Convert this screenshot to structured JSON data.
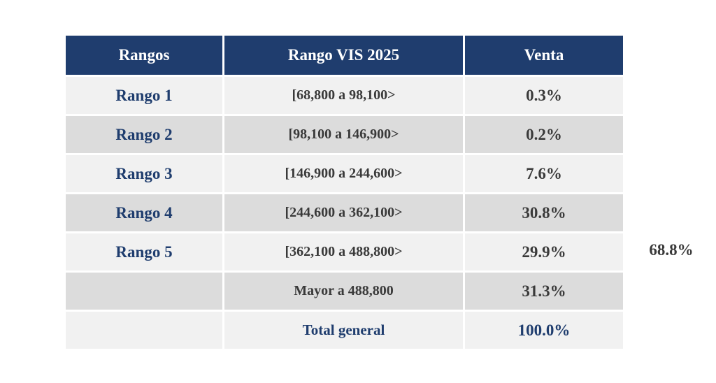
{
  "table": {
    "headers": [
      "Rangos",
      "Rango VIS 2025",
      "Venta"
    ],
    "rows": [
      {
        "rango": "Rango 1",
        "range": "[68,800 a 98,100>",
        "venta": "0.3%"
      },
      {
        "rango": "Rango 2",
        "range": "[98,100 a 146,900>",
        "venta": "0.2%"
      },
      {
        "rango": "Rango 3",
        "range": "[146,900 a 244,600>",
        "venta": "7.6%"
      },
      {
        "rango": "Rango 4",
        "range": "[244,600 a 362,100>",
        "venta": "30.8%"
      },
      {
        "rango": "Rango 5",
        "range": "[362,100 a 488,800>",
        "venta": "29.9%"
      },
      {
        "rango": "",
        "range": "Mayor a 488,800",
        "venta": "31.3%"
      }
    ],
    "total": {
      "label": "Total general",
      "value": "100.0%"
    }
  },
  "side_note": "68.8%",
  "colors": {
    "header_bg": "#1f3d6e",
    "header_text": "#ffffff",
    "accent_text": "#1f3d6e",
    "body_text": "#3a3a3a",
    "row_light": "#f1f1f1",
    "row_dark": "#dcdcdc"
  }
}
